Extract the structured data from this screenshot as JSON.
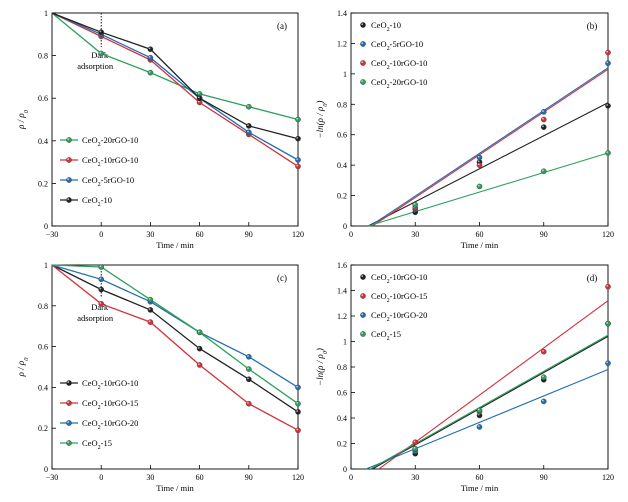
{
  "chart_data": [
    {
      "panel": "(a)",
      "type": "line",
      "xlabel": "Time / min",
      "ylabel": "ρ / ρ0",
      "xlim": [
        -30,
        120
      ],
      "ylim": [
        0,
        1.0
      ],
      "xticks": [
        -30,
        0,
        30,
        60,
        90,
        120
      ],
      "yticks": [
        0,
        0.2,
        0.4,
        0.6,
        0.8,
        1.0
      ],
      "annotation": [
        "Dark",
        "adsorption"
      ],
      "legend_position": "bottom-left",
      "grid": false,
      "series": [
        {
          "name": "CeO2-20rGO-10",
          "color": "#2ca05a",
          "x": [
            -30,
            0,
            30,
            60,
            90,
            120
          ],
          "y": [
            1.0,
            0.81,
            0.72,
            0.62,
            0.56,
            0.5
          ]
        },
        {
          "name": "CeO2-10rGO-10",
          "color": "#d62f3a",
          "x": [
            -30,
            0,
            30,
            60,
            90,
            120
          ],
          "y": [
            1.0,
            0.89,
            0.78,
            0.58,
            0.43,
            0.28
          ]
        },
        {
          "name": "CeO2-5rGO-10",
          "color": "#1f6fb4",
          "x": [
            -30,
            0,
            30,
            60,
            90,
            120
          ],
          "y": [
            1.0,
            0.9,
            0.79,
            0.6,
            0.44,
            0.31
          ]
        },
        {
          "name": "CeO2-10",
          "color": "#222222",
          "x": [
            -30,
            0,
            30,
            60,
            90,
            120
          ],
          "y": [
            1.0,
            0.91,
            0.83,
            0.6,
            0.47,
            0.41
          ]
        }
      ]
    },
    {
      "panel": "(b)",
      "type": "scatter",
      "xlabel": "Time / min",
      "ylabel": "−ln(ρ / ρ0)",
      "xlim": [
        0,
        120
      ],
      "ylim": [
        0,
        1.4
      ],
      "xticks": [
        0,
        30,
        60,
        90,
        120
      ],
      "yticks": [
        0,
        0.2,
        0.4,
        0.6,
        0.8,
        1.0,
        1.2,
        1.4
      ],
      "legend_position": "top-left",
      "grid": false,
      "series": [
        {
          "name": "CeO2-10",
          "color": "#222222",
          "x": [
            30,
            60,
            90,
            120
          ],
          "y": [
            0.09,
            0.42,
            0.65,
            0.79
          ],
          "fit": [
            [
              8,
              0
            ],
            [
              120,
              0.81
            ]
          ]
        },
        {
          "name": "CeO2-5rGO-10",
          "color": "#1f6fb4",
          "x": [
            30,
            60,
            90,
            120
          ],
          "y": [
            0.11,
            0.45,
            0.75,
            1.07
          ],
          "fit": [
            [
              9,
              0
            ],
            [
              120,
              1.04
            ]
          ]
        },
        {
          "name": "CeO2-10rGO-10",
          "color": "#d62f3a",
          "x": [
            30,
            60,
            90,
            120
          ],
          "y": [
            0.12,
            0.4,
            0.7,
            1.14
          ],
          "fit": [
            [
              10,
              0
            ],
            [
              120,
              1.03
            ]
          ]
        },
        {
          "name": "CeO2-20rGO-10",
          "color": "#2ca05a",
          "x": [
            30,
            60,
            90,
            120
          ],
          "y": [
            0.14,
            0.26,
            0.36,
            0.48
          ],
          "fit": [
            [
              8,
              0
            ],
            [
              120,
              0.48
            ]
          ]
        }
      ]
    },
    {
      "panel": "(c)",
      "type": "line",
      "xlabel": "Time / min",
      "ylabel": "ρ / ρ0",
      "xlim": [
        -30,
        120
      ],
      "ylim": [
        0,
        1.0
      ],
      "xticks": [
        -30,
        0,
        30,
        60,
        90,
        120
      ],
      "yticks": [
        0,
        0.2,
        0.4,
        0.6,
        0.8,
        1.0
      ],
      "annotation": [
        "Dark",
        "adsorption"
      ],
      "legend_position": "bottom-left",
      "grid": false,
      "series": [
        {
          "name": "CeO2-10rGO-10",
          "color": "#222222",
          "x": [
            -30,
            0,
            30,
            60,
            90,
            120
          ],
          "y": [
            1.0,
            0.88,
            0.78,
            0.59,
            0.44,
            0.28
          ]
        },
        {
          "name": "CeO2-10rGO-15",
          "color": "#d62f3a",
          "x": [
            -30,
            0,
            30,
            60,
            90,
            120
          ],
          "y": [
            1.0,
            0.81,
            0.72,
            0.51,
            0.32,
            0.19
          ]
        },
        {
          "name": "CeO2-10rGO-20",
          "color": "#1f6fb4",
          "x": [
            -30,
            0,
            30,
            60,
            90,
            120
          ],
          "y": [
            1.0,
            0.93,
            0.82,
            0.67,
            0.55,
            0.4
          ]
        },
        {
          "name": "CeO2-15",
          "color": "#2ca05a",
          "x": [
            -30,
            0,
            30,
            60,
            90,
            120
          ],
          "y": [
            1.0,
            0.99,
            0.83,
            0.67,
            0.49,
            0.32
          ]
        }
      ]
    },
    {
      "panel": "(d)",
      "type": "scatter",
      "xlabel": "Time / min",
      "ylabel": "−ln(ρ / ρ0)",
      "xlim": [
        0,
        120
      ],
      "ylim": [
        0,
        1.6
      ],
      "xticks": [
        0,
        30,
        60,
        90,
        120
      ],
      "yticks": [
        0,
        0.2,
        0.4,
        0.6,
        0.8,
        1.0,
        1.2,
        1.4,
        1.6
      ],
      "legend_position": "top-left",
      "grid": false,
      "series": [
        {
          "name": "CeO2-10rGO-10",
          "color": "#222222",
          "x": [
            30,
            60,
            90,
            120
          ],
          "y": [
            0.12,
            0.42,
            0.7,
            1.14
          ],
          "fit": [
            [
              10,
              0
            ],
            [
              120,
              1.04
            ]
          ]
        },
        {
          "name": "CeO2-10rGO-15",
          "color": "#d62f3a",
          "x": [
            30,
            60,
            90,
            120
          ],
          "y": [
            0.21,
            0.45,
            0.92,
            1.43
          ],
          "fit": [
            [
              13,
              0
            ],
            [
              120,
              1.32
            ]
          ]
        },
        {
          "name": "CeO2-10rGO-20",
          "color": "#1f6fb4",
          "x": [
            30,
            60,
            90,
            120
          ],
          "y": [
            0.14,
            0.33,
            0.53,
            0.83
          ],
          "fit": [
            [
              7,
              0
            ],
            [
              120,
              0.78
            ]
          ]
        },
        {
          "name": "CeO2-15",
          "color": "#2ca05a",
          "x": [
            30,
            60,
            90,
            120
          ],
          "y": [
            0.16,
            0.46,
            0.72,
            1.14
          ],
          "fit": [
            [
              9,
              0
            ],
            [
              120,
              1.05
            ]
          ]
        }
      ]
    }
  ]
}
